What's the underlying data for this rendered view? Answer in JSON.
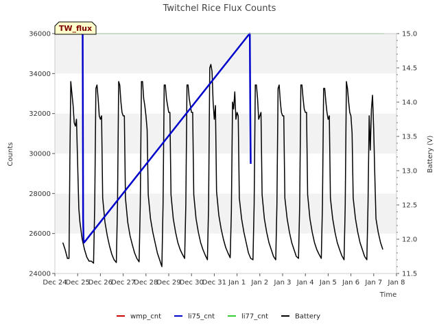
{
  "chart_data": {
    "type": "line",
    "title": "Twitchel Rice Flux Counts",
    "xlabel": "Time",
    "ylabel": "Counts",
    "y2label": "Battery (V)",
    "site_badge": "TW_flux",
    "xlim": [
      0,
      15
    ],
    "x_ticks": [
      {
        "x": 0,
        "label": "Dec 24"
      },
      {
        "x": 1,
        "label": "Dec 25"
      },
      {
        "x": 2,
        "label": "Dec 26"
      },
      {
        "x": 3,
        "label": "Dec 27"
      },
      {
        "x": 4,
        "label": "Dec 28"
      },
      {
        "x": 5,
        "label": "Dec 29"
      },
      {
        "x": 6,
        "label": "Dec 30"
      },
      {
        "x": 7,
        "label": "Dec 31"
      },
      {
        "x": 8,
        "label": "Jan 1"
      },
      {
        "x": 9,
        "label": "Jan 2"
      },
      {
        "x": 10,
        "label": "Jan 3"
      },
      {
        "x": 11,
        "label": "Jan 4"
      },
      {
        "x": 12,
        "label": "Jan 5"
      },
      {
        "x": 13,
        "label": "Jan 6"
      },
      {
        "x": 14,
        "label": "Jan 7"
      },
      {
        "x": 15,
        "label": "Jan 8"
      }
    ],
    "ylim": [
      24000,
      36000
    ],
    "y_ticks": [
      "24000",
      "26000",
      "28000",
      "30000",
      "32000",
      "34000",
      "36000"
    ],
    "y2lim": [
      11.5,
      15.0
    ],
    "y2_ticks": [
      "11.5",
      "12.0",
      "12.5",
      "13.0",
      "13.5",
      "14.0",
      "14.5",
      "15.0"
    ],
    "grid": true,
    "legend_position": "bottom",
    "colors": {
      "wmp_cnt": "#cc0000",
      "li75_cnt": "#0000cc",
      "li77_cnt": "#33cc33",
      "Battery": "#000000",
      "band": "#f2f2f2"
    },
    "series": [
      {
        "name": "wmp_cnt",
        "axis": "left",
        "color": "#cc0000",
        "x": [],
        "y": []
      },
      {
        "name": "li77_cnt",
        "axis": "right",
        "color": "#33cc33",
        "x": [
          0.05,
          14.45
        ],
        "y": [
          15.0,
          15.0
        ]
      },
      {
        "name": "li75_cnt",
        "axis": "right",
        "color": "#0000cc",
        "x": [
          1.2,
          1.22,
          1.24,
          1.26,
          1.28,
          8.55,
          8.56,
          8.58,
          8.6
        ],
        "y": [
          15.0,
          15.0,
          12.3,
          12.0,
          11.95,
          15.0,
          15.0,
          13.8,
          13.1
        ]
      },
      {
        "name": "Battery",
        "axis": "right",
        "color": "#000000",
        "x": [
          0.35,
          0.45,
          0.55,
          0.62,
          0.66,
          0.7,
          0.74,
          0.8,
          0.85,
          0.9,
          0.95,
          1.0,
          1.05,
          1.1,
          1.2,
          1.3,
          1.4,
          1.5,
          1.6,
          1.7,
          1.75,
          1.8,
          1.85,
          1.9,
          1.95,
          2.0,
          2.05,
          2.1,
          2.2,
          2.3,
          2.4,
          2.5,
          2.6,
          2.7,
          2.75,
          2.8,
          2.85,
          2.9,
          2.95,
          3.0,
          3.05,
          3.1,
          3.2,
          3.3,
          3.4,
          3.5,
          3.6,
          3.7,
          3.75,
          3.8,
          3.85,
          3.9,
          3.95,
          4.0,
          4.05,
          4.1,
          4.2,
          4.3,
          4.4,
          4.5,
          4.6,
          4.7,
          4.75,
          4.8,
          4.85,
          4.9,
          4.95,
          5.0,
          5.05,
          5.1,
          5.2,
          5.3,
          5.4,
          5.5,
          5.6,
          5.7,
          5.75,
          5.8,
          5.85,
          5.9,
          5.95,
          6.0,
          6.05,
          6.1,
          6.2,
          6.3,
          6.4,
          6.5,
          6.6,
          6.7,
          6.75,
          6.8,
          6.85,
          6.9,
          6.95,
          7.0,
          7.05,
          7.1,
          7.2,
          7.3,
          7.4,
          7.5,
          7.6,
          7.7,
          7.75,
          7.8,
          7.85,
          7.9,
          7.95,
          8.0,
          8.05,
          8.1,
          8.2,
          8.3,
          8.4,
          8.5,
          8.6,
          8.7,
          8.75,
          8.8,
          8.85,
          8.9,
          8.95,
          9.0,
          9.05,
          9.1,
          9.2,
          9.3,
          9.4,
          9.5,
          9.6,
          9.7,
          9.75,
          9.8,
          9.85,
          9.9,
          9.95,
          10.0,
          10.05,
          10.1,
          10.2,
          10.3,
          10.4,
          10.5,
          10.6,
          10.7,
          10.75,
          10.8,
          10.85,
          10.9,
          10.95,
          11.0,
          11.05,
          11.1,
          11.2,
          11.3,
          11.4,
          11.5,
          11.6,
          11.7,
          11.75,
          11.8,
          11.85,
          11.9,
          11.95,
          12.0,
          12.05,
          12.1,
          12.2,
          12.3,
          12.4,
          12.5,
          12.6,
          12.7,
          12.75,
          12.8,
          12.85,
          12.9,
          12.95,
          13.0,
          13.05,
          13.1,
          13.2,
          13.3,
          13.4,
          13.5,
          13.6,
          13.7,
          13.75,
          13.8,
          13.85,
          13.9,
          13.95,
          14.0,
          14.05,
          14.1,
          14.2,
          14.3,
          14.4
        ],
        "y": [
          11.95,
          11.85,
          11.72,
          11.72,
          13.2,
          14.3,
          14.15,
          13.95,
          13.7,
          13.65,
          13.75,
          13.1,
          12.45,
          12.25,
          12.0,
          11.85,
          11.74,
          11.68,
          11.68,
          11.65,
          12.5,
          14.2,
          14.25,
          14.05,
          13.8,
          13.75,
          13.8,
          12.6,
          12.25,
          12.05,
          11.9,
          11.78,
          11.7,
          11.66,
          12.5,
          14.3,
          14.25,
          14.0,
          13.85,
          13.8,
          13.8,
          12.6,
          12.25,
          12.05,
          11.92,
          11.8,
          11.72,
          11.67,
          12.5,
          14.3,
          14.3,
          14.05,
          13.95,
          13.8,
          13.6,
          12.65,
          12.3,
          12.1,
          11.95,
          11.8,
          11.7,
          11.6,
          12.5,
          14.25,
          14.25,
          14.05,
          13.95,
          13.85,
          13.85,
          12.65,
          12.3,
          12.1,
          11.95,
          11.85,
          11.78,
          11.72,
          12.5,
          14.25,
          14.25,
          14.05,
          13.95,
          13.85,
          13.85,
          12.65,
          12.3,
          12.1,
          11.95,
          11.85,
          11.77,
          11.7,
          12.5,
          14.5,
          14.55,
          14.45,
          14.0,
          13.75,
          13.95,
          12.7,
          12.35,
          12.15,
          12.0,
          11.88,
          11.8,
          11.73,
          12.4,
          14.0,
          13.9,
          14.15,
          13.75,
          13.85,
          13.8,
          12.6,
          12.3,
          12.1,
          11.95,
          11.8,
          11.72,
          11.7,
          12.5,
          14.25,
          14.25,
          14.05,
          13.75,
          13.8,
          13.85,
          12.65,
          12.3,
          12.1,
          11.95,
          11.85,
          11.75,
          11.7,
          12.5,
          14.2,
          14.25,
          14.0,
          13.85,
          13.8,
          13.8,
          12.6,
          12.3,
          12.1,
          11.95,
          11.85,
          11.75,
          11.72,
          12.5,
          14.25,
          14.25,
          14.05,
          13.9,
          13.85,
          13.85,
          12.65,
          12.3,
          12.1,
          11.95,
          11.85,
          11.78,
          11.72,
          12.5,
          14.2,
          14.2,
          14.0,
          13.85,
          13.75,
          13.8,
          12.6,
          12.3,
          12.1,
          11.95,
          11.85,
          11.76,
          11.7,
          12.5,
          14.3,
          14.2,
          14.0,
          13.85,
          13.8,
          13.55,
          12.6,
          12.3,
          12.1,
          11.95,
          11.85,
          11.75,
          11.7,
          12.5,
          13.8,
          13.3,
          13.9,
          14.1,
          13.6,
          12.9,
          12.3,
          12.1,
          11.95,
          11.85
        ]
      }
    ]
  }
}
